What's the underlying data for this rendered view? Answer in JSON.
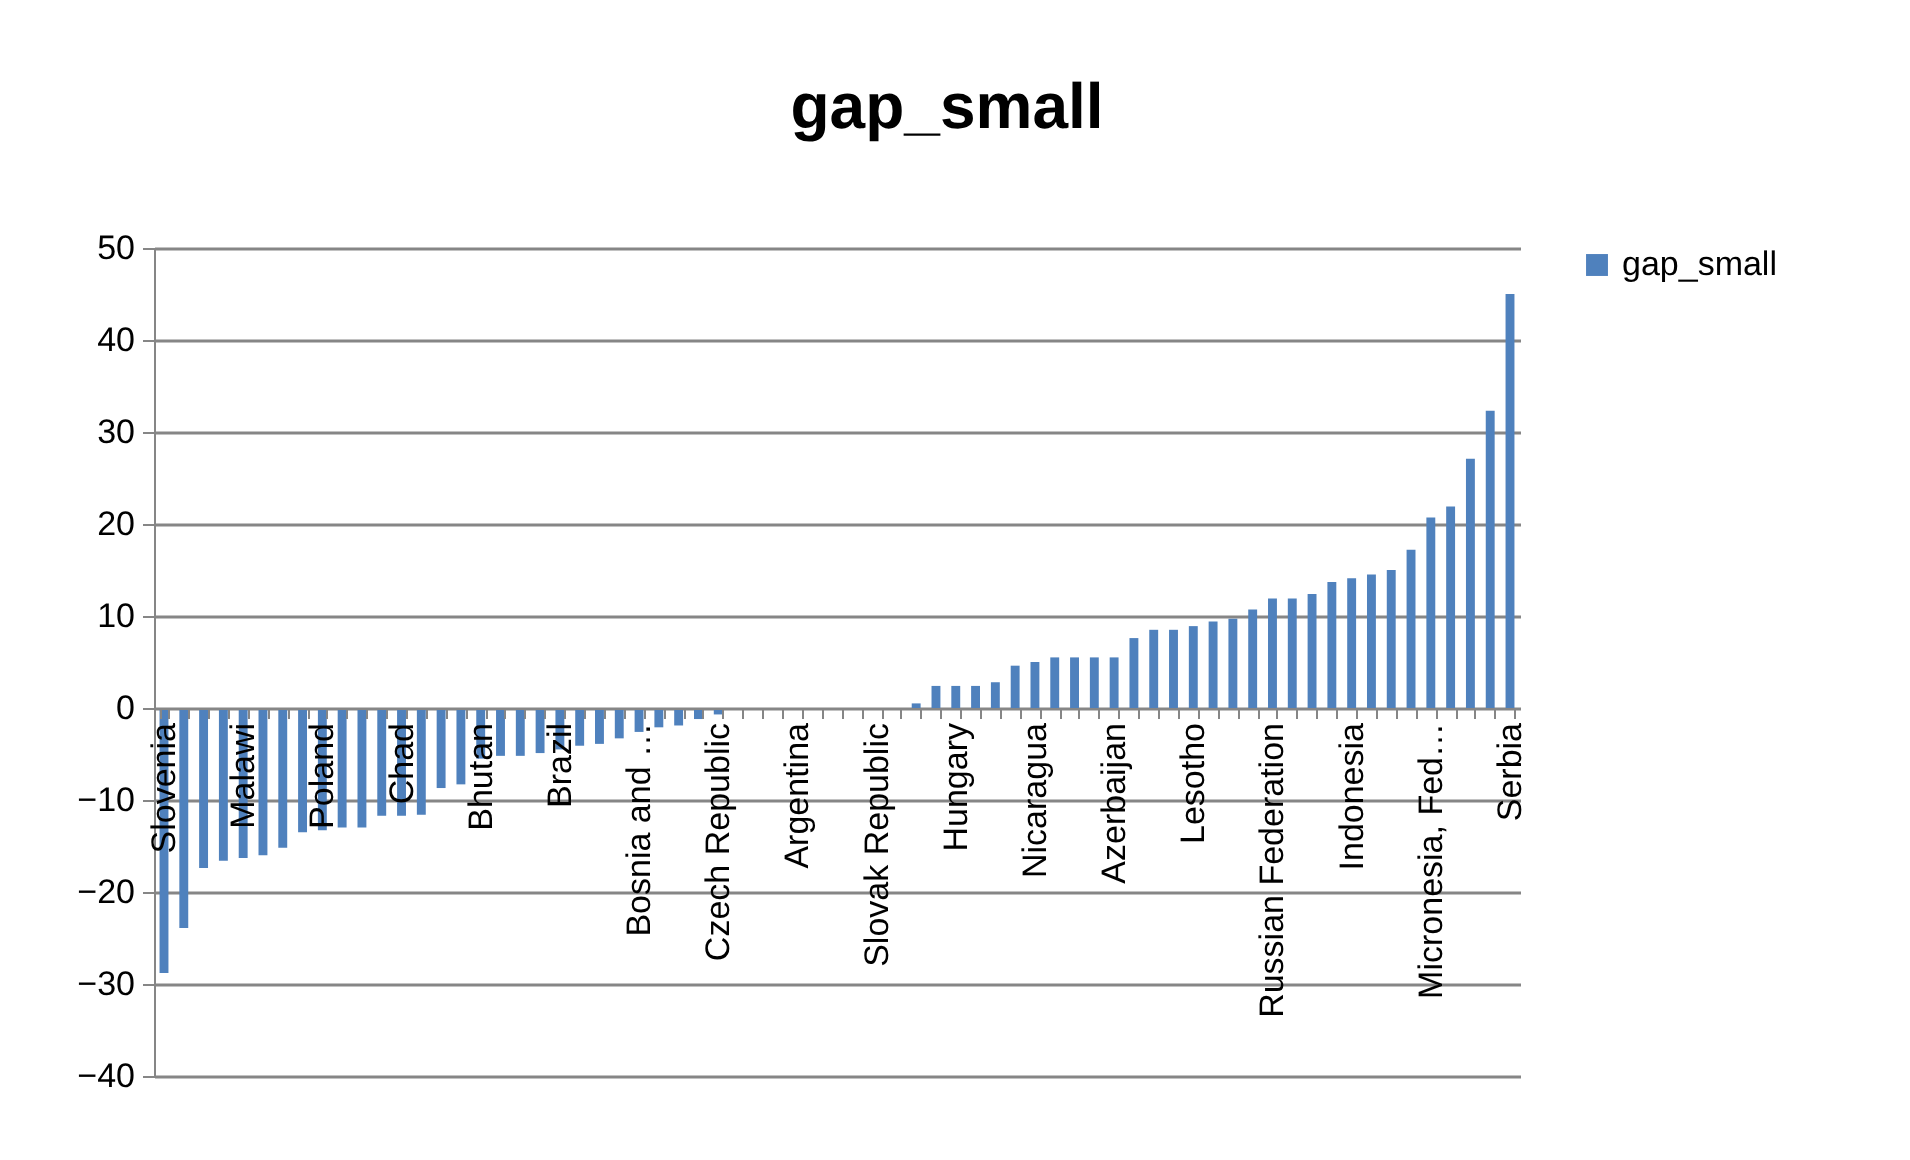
{
  "chart_data": {
    "type": "bar",
    "title": "gap_small",
    "categories": [
      "Slovenia",
      null,
      null,
      null,
      "Malawi",
      null,
      null,
      null,
      "Poland",
      null,
      null,
      null,
      "Chad",
      null,
      null,
      null,
      "Bhutan",
      null,
      null,
      null,
      "Brazil",
      null,
      null,
      null,
      "Bosnia and …",
      null,
      null,
      null,
      "Czech Republic",
      null,
      null,
      null,
      "Argentina",
      null,
      null,
      null,
      "Slovak Republic",
      null,
      null,
      null,
      "Hungary",
      null,
      null,
      null,
      "Nicaragua",
      null,
      null,
      null,
      "Azerbaijan",
      null,
      null,
      null,
      "Lesotho",
      null,
      null,
      null,
      "Russian Federation",
      null,
      null,
      null,
      "Indonesia",
      null,
      null,
      null,
      "Micronesia, Fed…",
      null,
      null,
      null,
      "Serbia"
    ],
    "series": [
      {
        "name": "gap_small",
        "color": "#4f81bd",
        "values": [
          -28.8,
          -23.9,
          -17.4,
          -16.6,
          -16.3,
          -16.0,
          -15.2,
          -13.5,
          -13.3,
          -13.0,
          -13.0,
          -11.7,
          -11.7,
          -11.6,
          -8.7,
          -8.3,
          -5.5,
          -5.2,
          -5.2,
          -4.9,
          -4.5,
          -4.1,
          -3.9,
          -3.3,
          -2.6,
          -2.1,
          -1.9,
          -1.2,
          -0.7,
          -0.2,
          0,
          0,
          0,
          0,
          0,
          0,
          0,
          0,
          0.5,
          2.4,
          2.4,
          2.4,
          2.8,
          4.6,
          5.0,
          5.5,
          5.5,
          5.5,
          5.5,
          7.6,
          8.5,
          8.5,
          8.9,
          9.4,
          9.7,
          10.7,
          11.9,
          11.9,
          12.4,
          13.7,
          14.1,
          14.5,
          15.0,
          17.2,
          20.7,
          21.9,
          27.1,
          32.3,
          45.0
        ]
      }
    ],
    "ylim": [
      -40,
      50
    ],
    "yticks": [
      -40,
      -30,
      -20,
      -10,
      0,
      10,
      20,
      30,
      40,
      50
    ],
    "grid": "y",
    "legend": "right"
  }
}
